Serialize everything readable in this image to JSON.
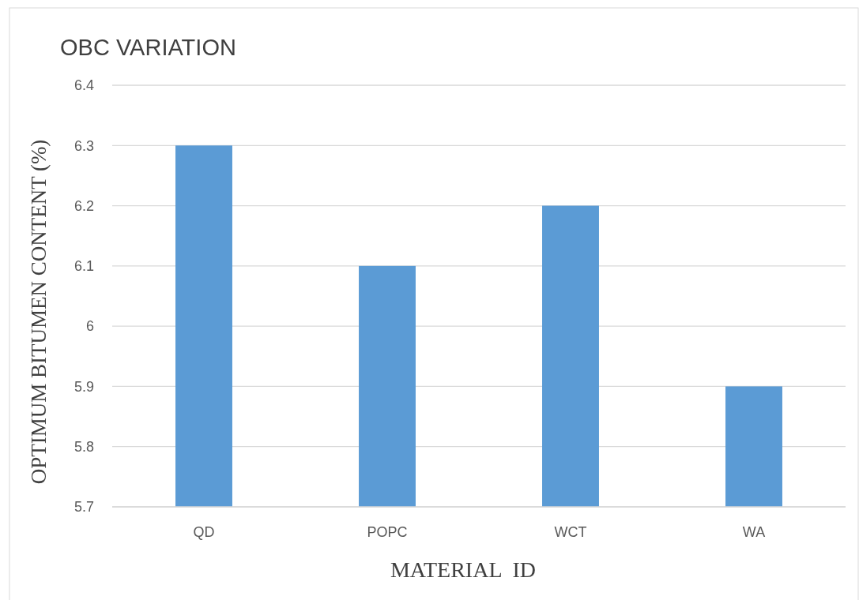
{
  "chart_data": {
    "type": "bar",
    "title": "OBC VARIATION",
    "xlabel": "MATERIAL  ID",
    "ylabel": "OPTIMUM BITUMEN CONTENT (%)",
    "categories": [
      "QD",
      "POPC",
      "WCT",
      "WA"
    ],
    "values": [
      6.3,
      6.1,
      6.2,
      5.9
    ],
    "color": "#5b9bd5",
    "ylim": [
      5.7,
      6.4
    ],
    "yticks": [
      5.7,
      5.8,
      5.9,
      6,
      6.1,
      6.2,
      6.3,
      6.4
    ],
    "grid": "y"
  }
}
